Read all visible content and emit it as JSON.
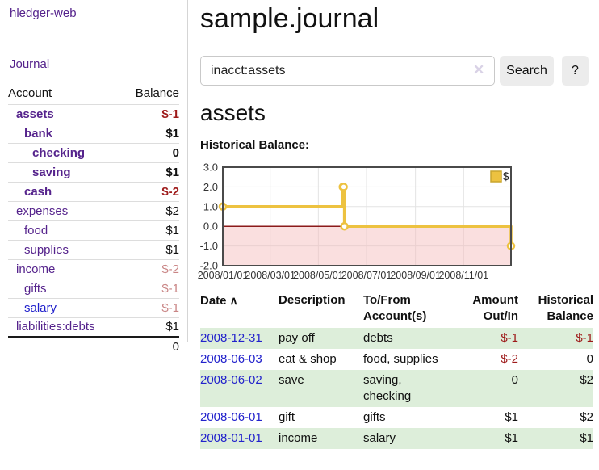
{
  "colors": {
    "purple": "#55238c",
    "blue": "#2222cc",
    "negative_dark": "#9e1a1a",
    "negative_pale": "#c98585",
    "stripe_green": "#ddeeda",
    "chart_gold": "#edc240",
    "chart_gold_dark": "#c9a52e",
    "negative_region_pink": "#f5b9b9",
    "zero_line_red": "#8b1a1a",
    "grid_gray": "#e3e3e3",
    "plot_border": "#4a4a4a"
  },
  "sidebar": {
    "app_title": "hledger-web",
    "journal_label": "Journal",
    "accounts_table": {
      "account_header": "Account",
      "balance_header": "Balance",
      "rows": [
        {
          "account": "assets",
          "balance": "$-1",
          "indent": 1,
          "bold": true
        },
        {
          "account": "bank",
          "balance": "$1",
          "indent": 2,
          "bold": true
        },
        {
          "account": "checking",
          "balance": "0",
          "indent": 3,
          "bold": true
        },
        {
          "account": "saving",
          "balance": "$1",
          "indent": 3,
          "bold": true
        },
        {
          "account": "cash",
          "balance": "$-2",
          "indent": 2,
          "bold": true
        },
        {
          "account": "expenses",
          "balance": "$2",
          "indent": 1,
          "bold": false
        },
        {
          "account": "food",
          "balance": "$1",
          "indent": 2,
          "bold": false
        },
        {
          "account": "supplies",
          "balance": "$1",
          "indent": 2,
          "bold": false
        },
        {
          "account": "income",
          "balance": "$-2",
          "indent": 1,
          "bold": false
        },
        {
          "account": "gifts",
          "balance": "$-1",
          "indent": 2,
          "bold": false
        },
        {
          "account": "salary",
          "balance": "$-1",
          "indent": 2,
          "bold": false,
          "link_color": "blue"
        },
        {
          "account": "liabilities:debts",
          "balance": "$1",
          "indent": 1,
          "bold": false
        }
      ],
      "total": "0"
    }
  },
  "header": {
    "title": "sample.journal"
  },
  "search": {
    "value": "inacct:assets",
    "clear_icon": "✕",
    "button_label": "Search",
    "help_label": "?"
  },
  "account_page": {
    "title": "assets",
    "chart_label": "Historical Balance:"
  },
  "chart_data": {
    "type": "line",
    "step": true,
    "title": "Historical Balance",
    "legend": "$",
    "legend_position": "top-right",
    "x_range": [
      "2008-01-01",
      "2008-12-31"
    ],
    "ylim": [
      -2,
      3
    ],
    "y_ticks": [
      3.0,
      2.0,
      1.0,
      0.0,
      -1.0,
      -2.0
    ],
    "y_tick_labels": [
      "3.0",
      "2.0",
      "1.0",
      "0.0",
      "-1.0",
      "-2.0"
    ],
    "x_tick_labels": [
      "2008/01/01",
      "2008/03/01",
      "2008/05/01",
      "2008/07/01",
      "2008/09/01",
      "2008/11/01"
    ],
    "grid": true,
    "negative_region_shaded": true,
    "series": [
      {
        "name": "$",
        "points": [
          {
            "x": "2008-01-01",
            "y": 1
          },
          {
            "x": "2008-06-01",
            "y": 2
          },
          {
            "x": "2008-06-02",
            "y": 2
          },
          {
            "x": "2008-06-03",
            "y": 0
          },
          {
            "x": "2008-12-31",
            "y": -1
          }
        ]
      }
    ]
  },
  "register": {
    "headers": [
      "Date",
      "Description",
      "To/From Account(s)",
      "Amount Out/In",
      "Historical Balance"
    ],
    "sort_icon": "∧",
    "rows": [
      {
        "date": "2008-12-31",
        "description": "pay off",
        "accounts": "debts",
        "amount": "$-1",
        "balance": "$-1"
      },
      {
        "date": "2008-06-03",
        "description": "eat & shop",
        "accounts": "food, supplies",
        "amount": "$-2",
        "balance": "0"
      },
      {
        "date": "2008-06-02",
        "description": "save",
        "accounts": "saving, checking",
        "amount": "0",
        "balance": "$2"
      },
      {
        "date": "2008-06-01",
        "description": "gift",
        "accounts": "gifts",
        "amount": "$1",
        "balance": "$2"
      },
      {
        "date": "2008-01-01",
        "description": "income",
        "accounts": "salary",
        "amount": "$1",
        "balance": "$1"
      }
    ]
  }
}
